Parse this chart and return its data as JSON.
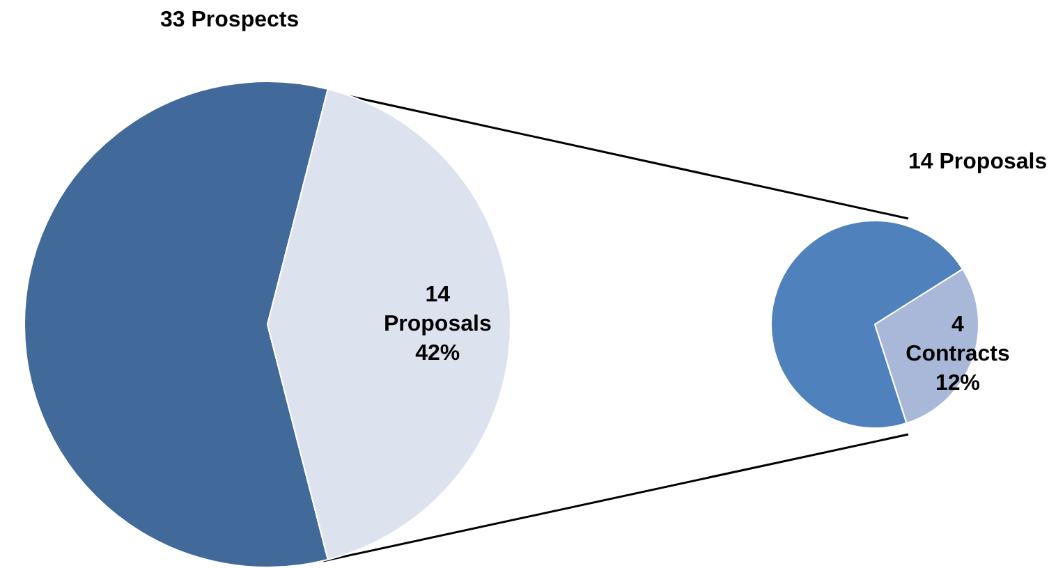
{
  "chart_data": [
    {
      "type": "pie",
      "title": "33 Prospects",
      "categories": [
        null,
        "14 Proposals"
      ],
      "values": [
        58,
        42
      ],
      "value_labels": [
        null,
        "42%"
      ],
      "colors": [
        "#41699a",
        "#dde3ee"
      ]
    },
    {
      "type": "pie",
      "title": "14 Proposals",
      "categories": [
        null,
        "4 Contracts 12%"
      ],
      "values": [
        71,
        29
      ],
      "colors": [
        "#4f81bd",
        "#a9b8d9"
      ]
    }
  ]
}
